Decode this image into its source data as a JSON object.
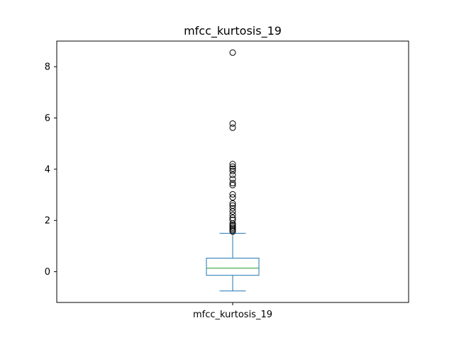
{
  "chart_data": {
    "type": "box",
    "title": "mfcc_kurtosis_19",
    "categories": [
      "mfcc_kurtosis_19"
    ],
    "xlabel": "",
    "ylabel": "",
    "ylim": [
      -1.2,
      9.0
    ],
    "yticks": [
      0,
      2,
      4,
      6,
      8
    ],
    "grid": false,
    "legend": "none",
    "colors": {
      "box": "#1f77b4",
      "median": "#2ca02c",
      "outlier": "#000000"
    },
    "series": [
      {
        "whisker_low": -0.75,
        "q1": -0.14,
        "median": 0.14,
        "q3": 0.53,
        "whisker_high": 1.5,
        "outliers": [
          1.57,
          1.62,
          1.67,
          1.72,
          1.78,
          1.82,
          1.88,
          2.02,
          2.1,
          2.22,
          2.35,
          2.48,
          2.58,
          2.66,
          2.9,
          3.02,
          3.38,
          3.46,
          3.62,
          3.78,
          3.93,
          4.02,
          4.1,
          4.2,
          5.62,
          5.78,
          8.55
        ]
      }
    ]
  }
}
